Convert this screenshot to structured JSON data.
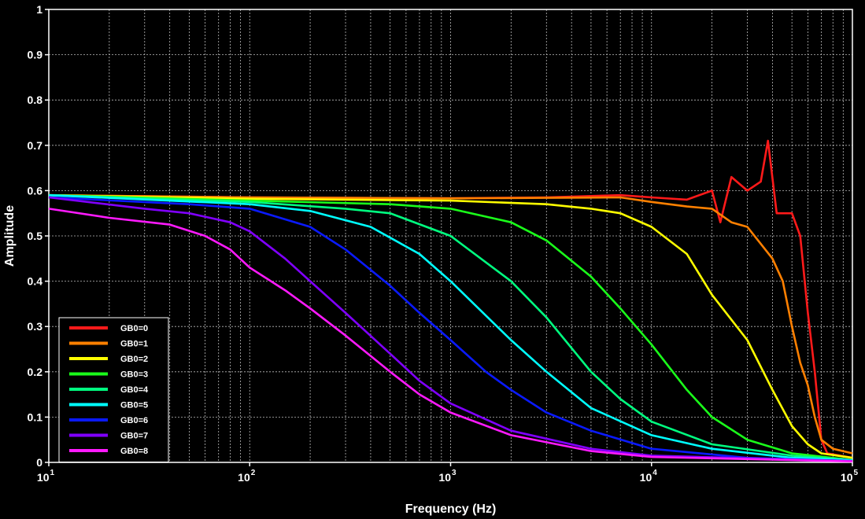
{
  "chart_data": {
    "type": "line",
    "xlabel": "Frequency (Hz)",
    "ylabel": "Amplitude",
    "xscale": "log",
    "xlim": [
      10,
      100000
    ],
    "ylim": [
      0,
      1
    ],
    "grid": true,
    "background": "#000000",
    "legend_position": "bottom-left",
    "x_ticks": [
      {
        "base": "10",
        "exp": "1"
      },
      {
        "base": "10",
        "exp": "2"
      },
      {
        "base": "10",
        "exp": "3"
      },
      {
        "base": "10",
        "exp": "4"
      },
      {
        "base": "10",
        "exp": "5"
      }
    ],
    "y_ticks": [
      "0",
      "0.1",
      "0.2",
      "0.3",
      "0.4",
      "0.5",
      "0.6",
      "0.7",
      "0.8",
      "0.9",
      "1"
    ],
    "series": [
      {
        "name": "GB0=0",
        "color": "#ff1a1a",
        "x": [
          10,
          100,
          1000,
          3000,
          7000,
          10000,
          15000,
          20000,
          22000,
          25000,
          30000,
          35000,
          38000,
          42000,
          50000,
          55000,
          60000,
          65000,
          70000,
          75000,
          100000
        ],
        "y": [
          0.59,
          0.585,
          0.583,
          0.585,
          0.59,
          0.585,
          0.58,
          0.6,
          0.53,
          0.63,
          0.6,
          0.62,
          0.71,
          0.55,
          0.55,
          0.5,
          0.33,
          0.2,
          0.05,
          0.02,
          0.01
        ]
      },
      {
        "name": "GB0=1",
        "color": "#ff8000",
        "x": [
          10,
          100,
          1000,
          3000,
          7000,
          10000,
          15000,
          20000,
          25000,
          30000,
          40000,
          45000,
          50000,
          55000,
          60000,
          65000,
          70000,
          80000,
          100000
        ],
        "y": [
          0.59,
          0.585,
          0.583,
          0.584,
          0.585,
          0.575,
          0.565,
          0.56,
          0.53,
          0.52,
          0.45,
          0.4,
          0.3,
          0.22,
          0.17,
          0.1,
          0.05,
          0.03,
          0.02
        ]
      },
      {
        "name": "GB0=2",
        "color": "#ffff00",
        "x": [
          10,
          100,
          1000,
          3000,
          5000,
          7000,
          10000,
          15000,
          20000,
          30000,
          40000,
          50000,
          60000,
          70000,
          100000
        ],
        "y": [
          0.59,
          0.582,
          0.578,
          0.57,
          0.56,
          0.55,
          0.52,
          0.46,
          0.37,
          0.27,
          0.16,
          0.08,
          0.04,
          0.02,
          0.01
        ]
      },
      {
        "name": "GB0=3",
        "color": "#1aff1a",
        "x": [
          10,
          100,
          500,
          1000,
          2000,
          3000,
          5000,
          7000,
          10000,
          15000,
          20000,
          30000,
          50000,
          100000
        ],
        "y": [
          0.59,
          0.578,
          0.57,
          0.56,
          0.53,
          0.49,
          0.41,
          0.34,
          0.26,
          0.16,
          0.1,
          0.05,
          0.02,
          0.005
        ]
      },
      {
        "name": "GB0=4",
        "color": "#00ff80",
        "x": [
          10,
          100,
          300,
          500,
          1000,
          2000,
          3000,
          5000,
          7000,
          10000,
          20000,
          50000,
          100000
        ],
        "y": [
          0.59,
          0.575,
          0.56,
          0.55,
          0.5,
          0.4,
          0.32,
          0.2,
          0.14,
          0.09,
          0.04,
          0.015,
          0.005
        ]
      },
      {
        "name": "GB0=5",
        "color": "#00ffff",
        "x": [
          10,
          100,
          200,
          400,
          700,
          1000,
          2000,
          3000,
          5000,
          10000,
          20000,
          50000,
          100000
        ],
        "y": [
          0.59,
          0.57,
          0.555,
          0.52,
          0.46,
          0.4,
          0.27,
          0.2,
          0.12,
          0.06,
          0.03,
          0.01,
          0.005
        ]
      },
      {
        "name": "GB0=6",
        "color": "#0a1aff",
        "x": [
          10,
          50,
          100,
          200,
          300,
          500,
          700,
          1000,
          1500,
          2000,
          3000,
          5000,
          10000,
          30000,
          100000
        ],
        "y": [
          0.585,
          0.57,
          0.56,
          0.52,
          0.47,
          0.39,
          0.33,
          0.27,
          0.2,
          0.16,
          0.11,
          0.07,
          0.03,
          0.01,
          0.003
        ]
      },
      {
        "name": "GB0=7",
        "color": "#8000ff",
        "x": [
          10,
          30,
          50,
          80,
          100,
          150,
          200,
          300,
          500,
          700,
          1000,
          2000,
          5000,
          10000,
          100000
        ],
        "y": [
          0.585,
          0.56,
          0.55,
          0.53,
          0.51,
          0.45,
          0.4,
          0.33,
          0.24,
          0.18,
          0.13,
          0.07,
          0.03,
          0.015,
          0.003
        ]
      },
      {
        "name": "GB0=8",
        "color": "#ff1aff",
        "x": [
          10,
          20,
          40,
          60,
          80,
          100,
          150,
          200,
          300,
          500,
          700,
          1000,
          2000,
          5000,
          10000,
          100000
        ],
        "y": [
          0.56,
          0.54,
          0.525,
          0.5,
          0.47,
          0.43,
          0.38,
          0.34,
          0.28,
          0.2,
          0.15,
          0.11,
          0.06,
          0.025,
          0.012,
          0.002
        ]
      }
    ]
  }
}
